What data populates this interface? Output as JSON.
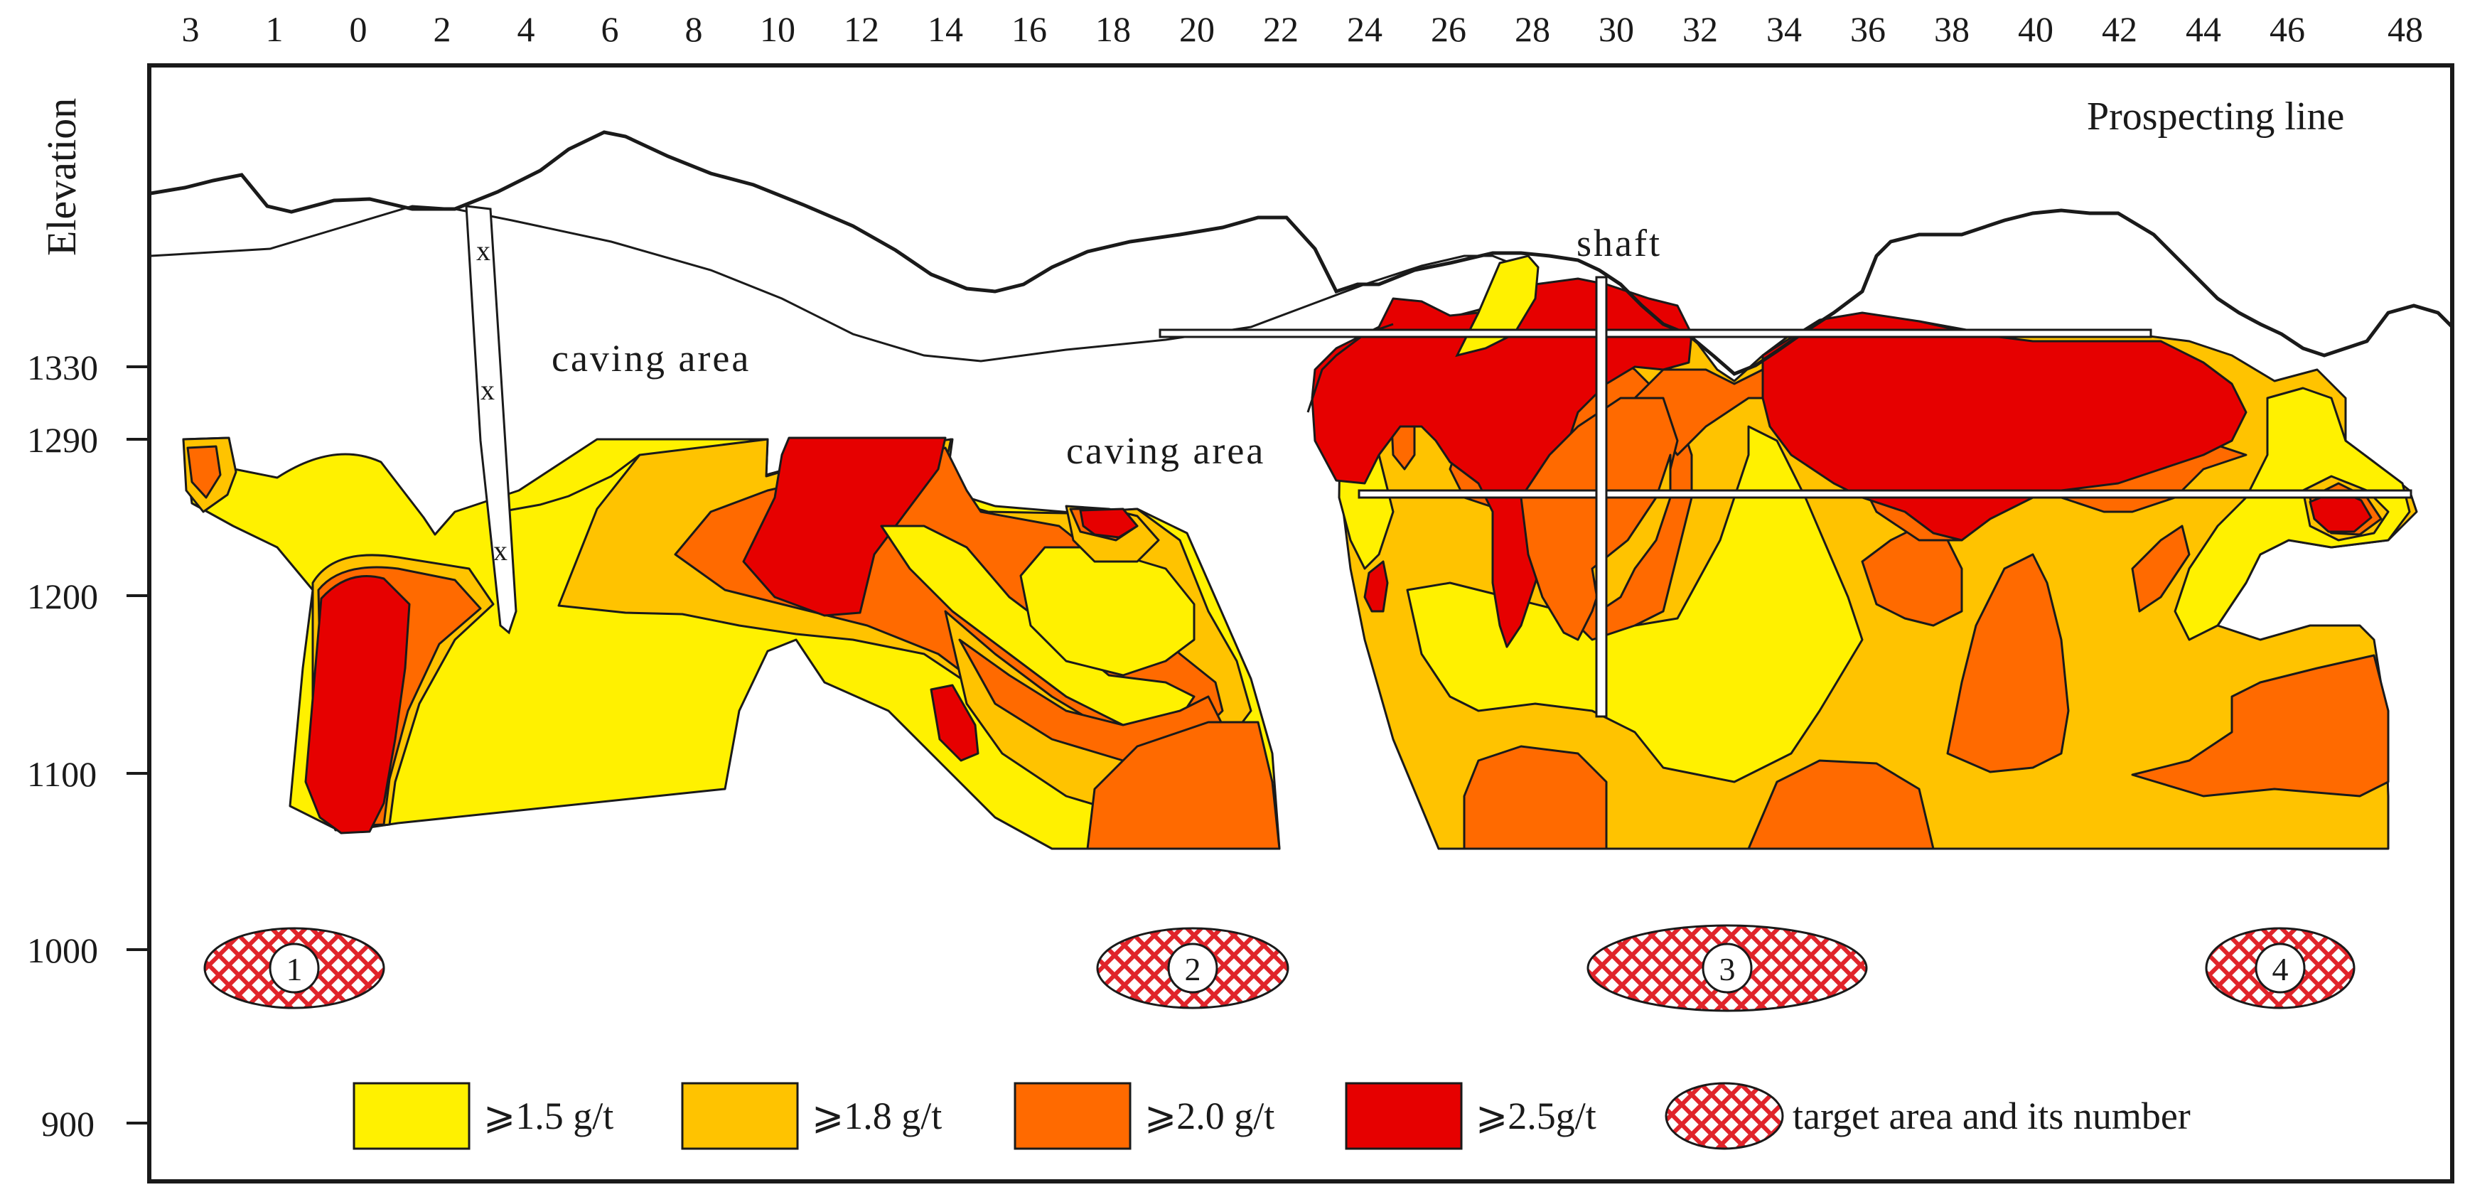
{
  "axes": {
    "vertical_label": "Elevation",
    "corner_label": "Prospecting line",
    "prospecting_lines": [
      "3",
      "1",
      "0",
      "2",
      "4",
      "6",
      "8",
      "10",
      "12",
      "14",
      "16",
      "18",
      "20",
      "22",
      "24",
      "26",
      "28",
      "30",
      "32",
      "34",
      "36",
      "38",
      "40",
      "42",
      "44",
      "46",
      "48"
    ],
    "elevations": [
      "1330",
      "1290",
      "1200",
      "1100",
      "1000",
      "900"
    ]
  },
  "annotations": {
    "caving_area_1": "caving area",
    "caving_area_2": "caving area",
    "shaft": "shaft",
    "cross_mark": "x"
  },
  "targets": [
    {
      "number": "1",
      "prospecting_line": 0
    },
    {
      "number": "2",
      "prospecting_line": 18
    },
    {
      "number": "3",
      "prospecting_line": 30
    },
    {
      "number": "4",
      "prospecting_line": 46
    }
  ],
  "legend": {
    "items": [
      {
        "label": "⩾1.5 g/t",
        "color": "#FFF100"
      },
      {
        "label": "⩾1.8 g/t",
        "color": "#FFC300"
      },
      {
        "label": "⩾2.0 g/t",
        "color": "#FF6A00"
      },
      {
        "label": "⩾2.5g/t",
        "color": "#E60000"
      }
    ],
    "target_label": "target area and its number"
  },
  "colors": {
    "grade_1_5": "#FFF100",
    "grade_1_8": "#FFC300",
    "grade_2_0": "#FF6A00",
    "grade_2_5": "#E60000",
    "target_hatch": "#E0242A"
  }
}
